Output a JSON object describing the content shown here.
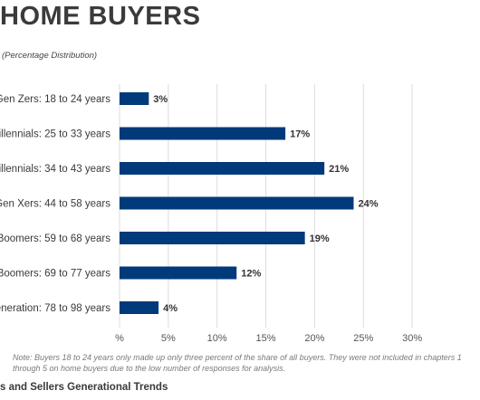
{
  "header": {
    "title": "HOME BUYERS",
    "subtitle": "(Percentage Distribution)"
  },
  "chart_data": {
    "type": "bar",
    "orientation": "horizontal",
    "title": "HOME BUYERS",
    "subtitle": "(Percentage Distribution)",
    "categories": [
      "Gen Zers: 18 to 24 years",
      "illennials: 25 to 33 years",
      "illennials: 34 to 43 years",
      "Gen Xers: 44 to 58 years",
      "Boomers: 59 to 68 years",
      "Boomers: 69 to 77 years",
      "eneration: 78 to 98 years"
    ],
    "values": [
      3,
      17,
      21,
      24,
      19,
      12,
      4
    ],
    "value_labels": [
      "3%",
      "17%",
      "21%",
      "24%",
      "19%",
      "12%",
      "4%"
    ],
    "xlim": [
      0,
      30
    ],
    "x_ticks": [
      0,
      5,
      10,
      15,
      20,
      25,
      30
    ],
    "x_tick_labels": [
      "%",
      "5%",
      "10%",
      "15%",
      "20%",
      "25%",
      "30%"
    ],
    "grid": "vertical",
    "bar_color": "#003a7a",
    "grid_color": "#dcdcdc"
  },
  "note": "Note: Buyers 18 to 24 years only made up only three percent of the share of all buyers. They were not included in chapters 1 through 5 on home buyers due to the low number of responses for analysis.",
  "footer": "s and Sellers Generational Trends"
}
